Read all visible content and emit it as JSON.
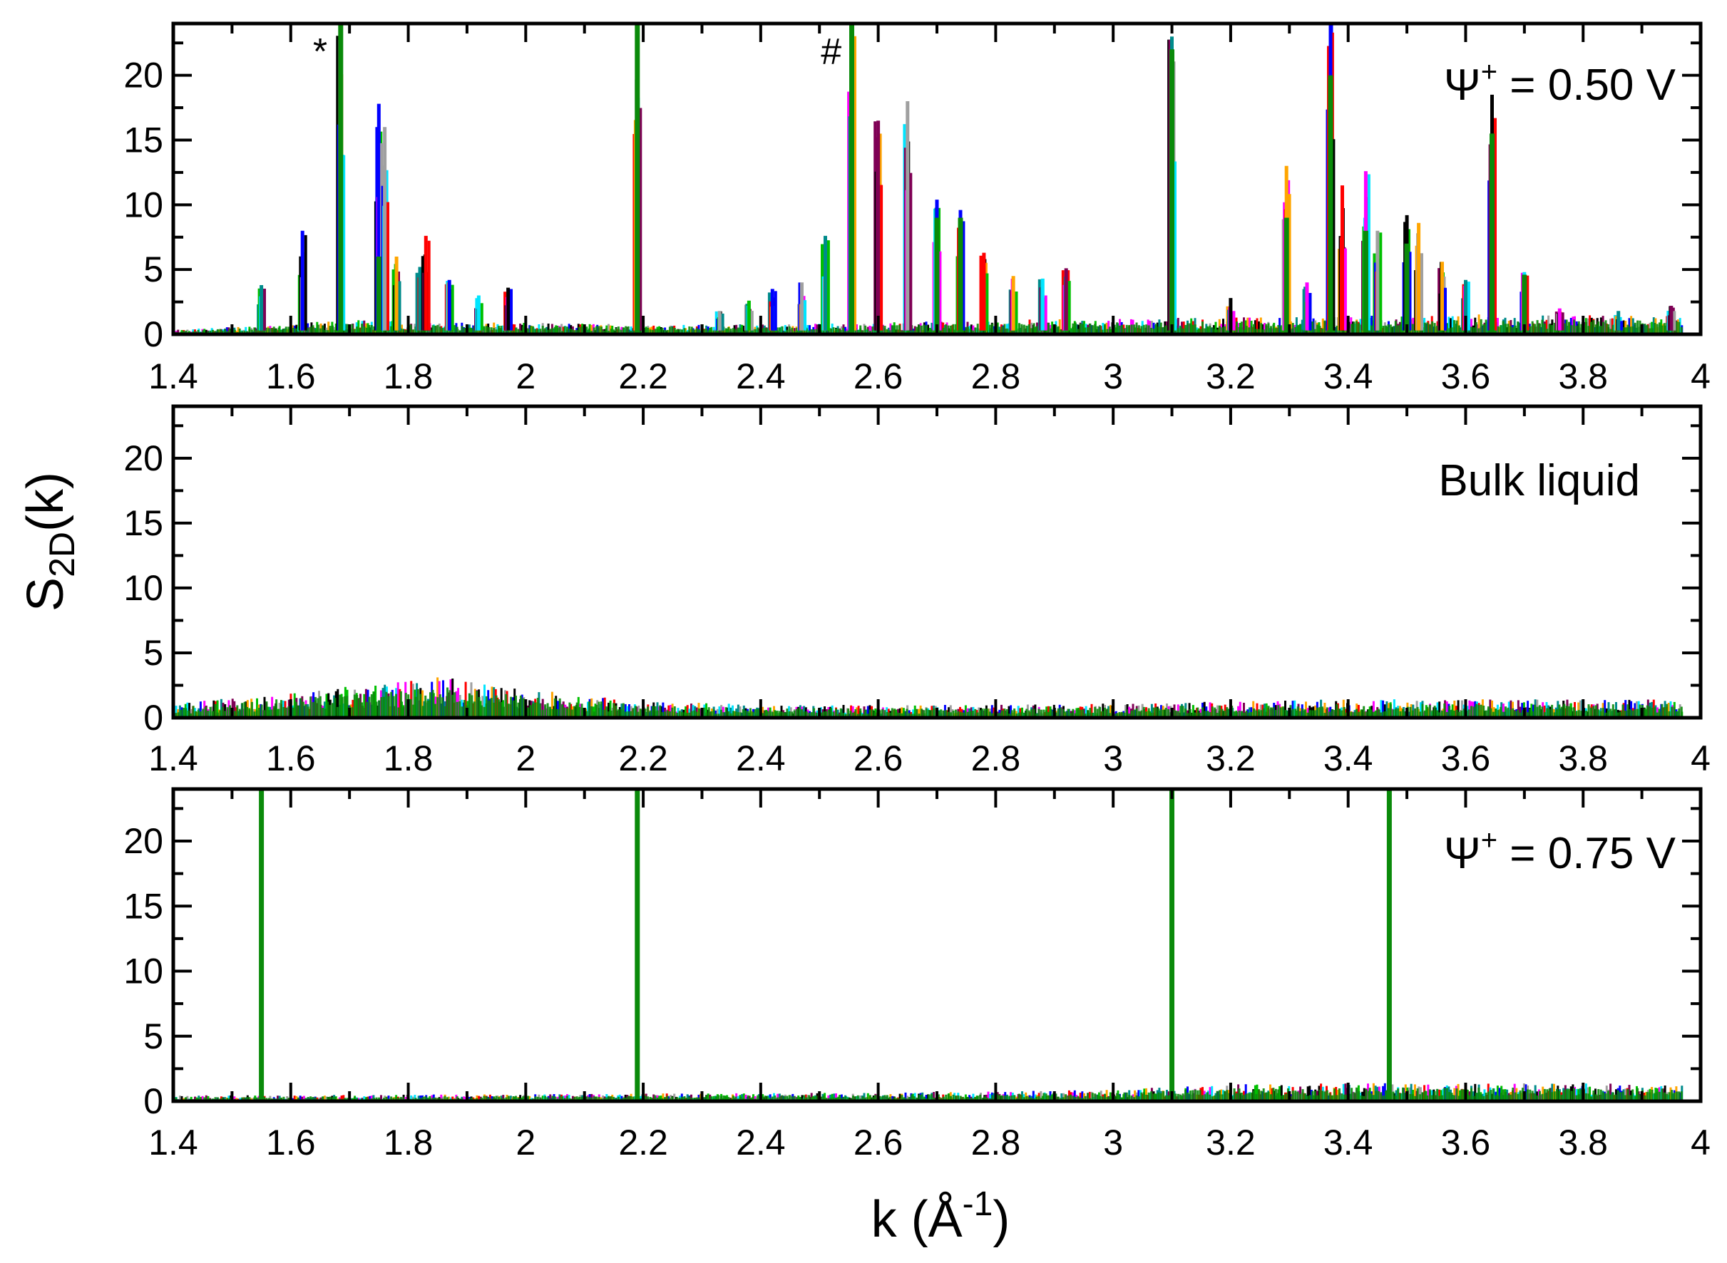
{
  "figure": {
    "ylabel_main": "S",
    "ylabel_sub": "2D",
    "ylabel_tail": "(k)",
    "xlabel_main": "k (Å",
    "xlabel_sup": "-1",
    "xlabel_tail": ")"
  },
  "colors": {
    "series": [
      "#000000",
      "#ff0000",
      "#0000ff",
      "#ff00ff",
      "#00e5ff",
      "#ffa500",
      "#7f0055",
      "#00c000",
      "#a0a0a0",
      "#008b8b"
    ],
    "dominant": "#0a8a0a",
    "frame": "#000000"
  },
  "chart_data": [
    {
      "type": "line",
      "panel": "top",
      "annotation_main": "Ψ",
      "annotation_sup": "+",
      "annotation_tail": " = 0.50 V",
      "markers": [
        {
          "k": 1.65,
          "text": "*"
        },
        {
          "k": 2.52,
          "text": "#"
        }
      ],
      "xlim": [
        1.4,
        4.0
      ],
      "ylim": [
        0,
        24
      ],
      "xticks": [
        1.4,
        1.6,
        1.8,
        2.0,
        2.2,
        2.4,
        2.6,
        2.8,
        3.0,
        3.2,
        3.4,
        3.6,
        3.8,
        4.0
      ],
      "xtick_labels": [
        "1.4",
        "1.6",
        "1.8",
        "2",
        "2.2",
        "2.4",
        "2.6",
        "2.8",
        "3",
        "3.2",
        "3.4",
        "3.6",
        "3.8",
        "4"
      ],
      "yticks": [
        0,
        5,
        10,
        15,
        20
      ],
      "ytick_labels": [
        "0",
        "5",
        "10",
        "15",
        "20"
      ],
      "baseline": [
        [
          1.4,
          0.3
        ],
        [
          1.7,
          1.0
        ],
        [
          2.0,
          0.8
        ],
        [
          2.4,
          0.7
        ],
        [
          2.8,
          1.0
        ],
        [
          3.2,
          1.2
        ],
        [
          3.6,
          1.4
        ],
        [
          3.97,
          1.3
        ]
      ],
      "peaks": [
        {
          "k": 1.55,
          "s": 3.8
        },
        {
          "k": 1.62,
          "s": 8.0
        },
        {
          "k": 1.685,
          "s": 24.0
        },
        {
          "k": 1.75,
          "s": 17.8
        },
        {
          "k": 1.76,
          "s": 16.0
        },
        {
          "k": 1.78,
          "s": 6.0
        },
        {
          "k": 1.82,
          "s": 5.2
        },
        {
          "k": 1.83,
          "s": 7.6
        },
        {
          "k": 1.87,
          "s": 4.2
        },
        {
          "k": 1.92,
          "s": 3.0
        },
        {
          "k": 1.97,
          "s": 3.6
        },
        {
          "k": 2.19,
          "s": 24.0
        },
        {
          "k": 2.33,
          "s": 1.8
        },
        {
          "k": 2.38,
          "s": 2.6
        },
        {
          "k": 2.42,
          "s": 3.5
        },
        {
          "k": 2.47,
          "s": 4.0
        },
        {
          "k": 2.51,
          "s": 7.6
        },
        {
          "k": 2.555,
          "s": 24.0
        },
        {
          "k": 2.6,
          "s": 16.5
        },
        {
          "k": 2.65,
          "s": 18.0
        },
        {
          "k": 2.7,
          "s": 10.4
        },
        {
          "k": 2.74,
          "s": 9.6
        },
        {
          "k": 2.78,
          "s": 6.3
        },
        {
          "k": 2.83,
          "s": 4.5
        },
        {
          "k": 2.88,
          "s": 4.3
        },
        {
          "k": 2.92,
          "s": 5.1
        },
        {
          "k": 3.1,
          "s": 23.0
        },
        {
          "k": 3.2,
          "s": 2.8
        },
        {
          "k": 3.295,
          "s": 13.0
        },
        {
          "k": 3.33,
          "s": 4.0
        },
        {
          "k": 3.37,
          "s": 24.0
        },
        {
          "k": 3.39,
          "s": 11.5
        },
        {
          "k": 3.43,
          "s": 12.6
        },
        {
          "k": 3.45,
          "s": 8.0
        },
        {
          "k": 3.5,
          "s": 9.2
        },
        {
          "k": 3.52,
          "s": 8.6
        },
        {
          "k": 3.56,
          "s": 5.6
        },
        {
          "k": 3.6,
          "s": 4.2
        },
        {
          "k": 3.645,
          "s": 18.5
        },
        {
          "k": 3.7,
          "s": 4.8
        },
        {
          "k": 3.76,
          "s": 2.0
        },
        {
          "k": 3.86,
          "s": 1.8
        },
        {
          "k": 3.95,
          "s": 2.2
        }
      ],
      "green_peaks": [
        {
          "k": 1.685,
          "s": 24.0
        },
        {
          "k": 1.75,
          "s": 6.0
        },
        {
          "k": 2.19,
          "s": 24.0
        },
        {
          "k": 2.555,
          "s": 24.0
        },
        {
          "k": 2.7,
          "s": 9.0
        },
        {
          "k": 2.74,
          "s": 9.0
        },
        {
          "k": 3.1,
          "s": 22.0
        },
        {
          "k": 3.295,
          "s": 9.0
        },
        {
          "k": 3.37,
          "s": 20.0
        },
        {
          "k": 3.43,
          "s": 8.0
        },
        {
          "k": 3.5,
          "s": 7.0
        },
        {
          "k": 3.645,
          "s": 15.5
        },
        {
          "k": 3.7,
          "s": 4.6
        }
      ]
    },
    {
      "type": "line",
      "panel": "middle",
      "annotation_main": "Bulk liquid",
      "annotation_sup": "",
      "annotation_tail": "",
      "markers": [],
      "xlim": [
        1.4,
        4.0
      ],
      "ylim": [
        0,
        24
      ],
      "xticks": [
        1.4,
        1.6,
        1.8,
        2.0,
        2.2,
        2.4,
        2.6,
        2.8,
        3.0,
        3.2,
        3.4,
        3.6,
        3.8,
        4.0
      ],
      "xtick_labels": [
        "1.4",
        "1.6",
        "1.8",
        "2",
        "2.2",
        "2.4",
        "2.6",
        "2.8",
        "3",
        "3.2",
        "3.4",
        "3.6",
        "3.8",
        "4"
      ],
      "yticks": [
        0,
        5,
        10,
        15,
        20
      ],
      "ytick_labels": [
        "0",
        "5",
        "10",
        "15",
        "20"
      ],
      "baseline": [
        [
          1.4,
          1.0
        ],
        [
          1.6,
          1.8
        ],
        [
          1.8,
          2.6
        ],
        [
          1.85,
          2.9
        ],
        [
          2.0,
          2.0
        ],
        [
          2.2,
          1.2
        ],
        [
          2.4,
          0.9
        ],
        [
          2.8,
          0.9
        ],
        [
          3.0,
          1.0
        ],
        [
          3.4,
          1.3
        ],
        [
          3.97,
          1.3
        ]
      ],
      "peaks": [],
      "green_peaks": []
    },
    {
      "type": "line",
      "panel": "bottom",
      "annotation_main": "Ψ",
      "annotation_sup": "+",
      "annotation_tail": " = 0.75 V",
      "markers": [],
      "xlim": [
        1.4,
        4.0
      ],
      "ylim": [
        0,
        24
      ],
      "xticks": [
        1.4,
        1.6,
        1.8,
        2.0,
        2.2,
        2.4,
        2.6,
        2.8,
        3.0,
        3.2,
        3.4,
        3.6,
        3.8,
        4.0
      ],
      "xtick_labels": [
        "1.4",
        "1.6",
        "1.8",
        "2",
        "2.2",
        "2.4",
        "2.6",
        "2.8",
        "3",
        "3.2",
        "3.4",
        "3.6",
        "3.8",
        "4"
      ],
      "yticks": [
        0,
        5,
        10,
        15,
        20
      ],
      "ytick_labels": [
        "0",
        "5",
        "10",
        "15",
        "20"
      ],
      "baseline": [
        [
          1.4,
          0.4
        ],
        [
          2.0,
          0.5
        ],
        [
          2.6,
          0.6
        ],
        [
          3.0,
          0.8
        ],
        [
          3.2,
          1.2
        ],
        [
          3.6,
          1.3
        ],
        [
          3.97,
          1.2
        ]
      ],
      "peaks": [],
      "green_peaks": [
        {
          "k": 1.55,
          "s": 24.0
        },
        {
          "k": 2.19,
          "s": 24.0
        },
        {
          "k": 3.1,
          "s": 24.0
        },
        {
          "k": 3.47,
          "s": 24.0
        }
      ]
    }
  ]
}
